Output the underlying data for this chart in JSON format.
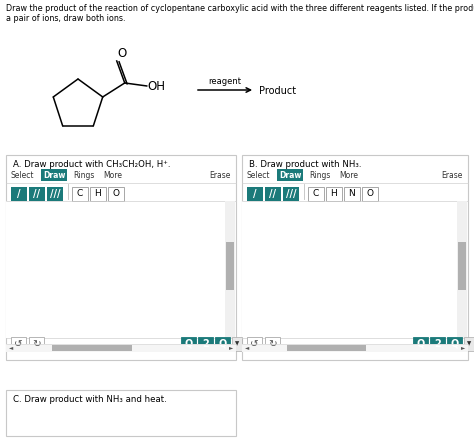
{
  "title_line1": "Draw the product of the reaction of cyclopentane carboxylic acid with the three different reagents listed. If the product is",
  "title_line2": "a pair of ions, draw both ions.",
  "reagent_label": "reagent",
  "product_label": "Product",
  "section_a_title": "A. Draw product with CH₃CH₂OH, H⁺.",
  "section_b_title": "B. Draw product with NH₃.",
  "section_c_title": "C. Draw product with NH₃ and heat.",
  "draw_btn_color": "#1b7a7a",
  "draw_btn_text_color": "#ffffff",
  "panel_border_color": "#c8c8c8",
  "bg_color": "#ffffff",
  "atom_btns_a": [
    "C",
    "H",
    "O"
  ],
  "atom_btns_b": [
    "C",
    "H",
    "N",
    "O"
  ],
  "bond_icons": [
    "/",
    "//",
    "///"
  ],
  "scrollbar_gray": "#b0b0b0",
  "scrollbar_light": "#e0e0e0",
  "text_color": "#333333"
}
